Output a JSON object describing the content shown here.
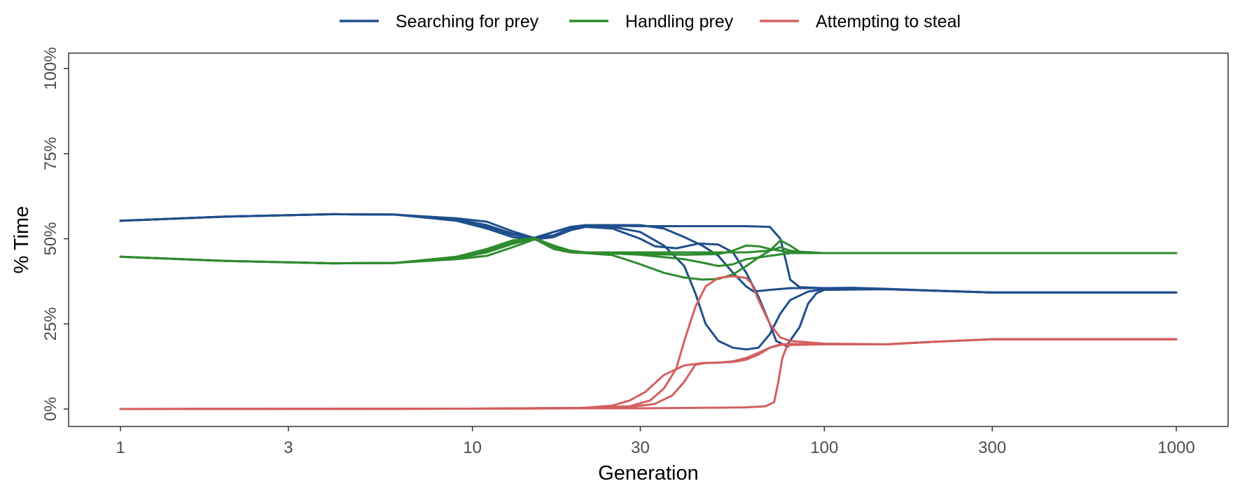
{
  "chart_data": {
    "type": "line",
    "title": "",
    "xlabel": "Generation",
    "ylabel": "% Time",
    "x_scale": "log",
    "xlim": [
      1,
      1000
    ],
    "ylim": [
      0,
      1
    ],
    "x_ticks": [
      1,
      3,
      10,
      30,
      100,
      300,
      1000
    ],
    "x_tick_labels": [
      "1",
      "3",
      "10",
      "30",
      "100",
      "300",
      "1000"
    ],
    "y_ticks": [
      0,
      0.25,
      0.5,
      0.75,
      1.0
    ],
    "y_tick_labels": [
      "0%",
      "25%",
      "50%",
      "75%",
      "100%"
    ],
    "grid": false,
    "legend_position": "top",
    "series": [
      {
        "name": "Searching for prey",
        "color": "#1f4e8c",
        "run": 1,
        "points": [
          [
            1,
            0.553
          ],
          [
            2,
            0.565
          ],
          [
            4,
            0.572
          ],
          [
            6,
            0.571
          ],
          [
            9,
            0.56
          ],
          [
            11,
            0.55
          ],
          [
            13,
            0.522
          ],
          [
            15,
            0.502
          ],
          [
            17,
            0.51
          ],
          [
            19,
            0.53
          ],
          [
            21,
            0.537
          ],
          [
            25,
            0.538
          ],
          [
            30,
            0.537
          ],
          [
            40,
            0.537
          ],
          [
            50,
            0.537
          ],
          [
            60,
            0.537
          ],
          [
            70,
            0.535
          ],
          [
            75,
            0.5
          ],
          [
            78,
            0.43
          ],
          [
            80,
            0.38
          ],
          [
            85,
            0.358
          ],
          [
            100,
            0.355
          ],
          [
            120,
            0.356
          ],
          [
            150,
            0.353
          ],
          [
            200,
            0.348
          ],
          [
            300,
            0.342
          ],
          [
            500,
            0.342
          ],
          [
            1000,
            0.342
          ]
        ]
      },
      {
        "name": "Searching for prey",
        "color": "#1f4e8c",
        "run": 2,
        "points": [
          [
            1,
            0.553
          ],
          [
            2,
            0.565
          ],
          [
            4,
            0.572
          ],
          [
            6,
            0.571
          ],
          [
            9,
            0.557
          ],
          [
            11,
            0.54
          ],
          [
            13,
            0.515
          ],
          [
            15,
            0.5
          ],
          [
            17,
            0.52
          ],
          [
            19,
            0.535
          ],
          [
            21,
            0.54
          ],
          [
            25,
            0.54
          ],
          [
            30,
            0.54
          ],
          [
            35,
            0.53
          ],
          [
            40,
            0.505
          ],
          [
            45,
            0.48
          ],
          [
            50,
            0.45
          ],
          [
            55,
            0.4
          ],
          [
            60,
            0.36
          ],
          [
            63,
            0.345
          ],
          [
            70,
            0.35
          ],
          [
            80,
            0.355
          ],
          [
            100,
            0.355
          ],
          [
            150,
            0.352
          ],
          [
            300,
            0.342
          ],
          [
            1000,
            0.342
          ]
        ]
      },
      {
        "name": "Searching for prey",
        "color": "#1f4e8c",
        "run": 3,
        "points": [
          [
            1,
            0.553
          ],
          [
            2,
            0.565
          ],
          [
            4,
            0.572
          ],
          [
            6,
            0.571
          ],
          [
            9,
            0.555
          ],
          [
            11,
            0.535
          ],
          [
            13,
            0.512
          ],
          [
            15,
            0.503
          ],
          [
            17,
            0.52
          ],
          [
            19,
            0.533
          ],
          [
            21,
            0.537
          ],
          [
            25,
            0.535
          ],
          [
            30,
            0.52
          ],
          [
            35,
            0.48
          ],
          [
            40,
            0.42
          ],
          [
            43,
            0.34
          ],
          [
            46,
            0.25
          ],
          [
            50,
            0.2
          ],
          [
            55,
            0.18
          ],
          [
            60,
            0.175
          ],
          [
            65,
            0.18
          ],
          [
            70,
            0.22
          ],
          [
            75,
            0.28
          ],
          [
            80,
            0.32
          ],
          [
            90,
            0.345
          ],
          [
            100,
            0.352
          ],
          [
            150,
            0.352
          ],
          [
            300,
            0.342
          ],
          [
            1000,
            0.342
          ]
        ]
      },
      {
        "name": "Searching for prey",
        "color": "#1f4e8c",
        "run": 4,
        "points": [
          [
            1,
            0.553
          ],
          [
            2,
            0.565
          ],
          [
            4,
            0.572
          ],
          [
            6,
            0.571
          ],
          [
            9,
            0.553
          ],
          [
            11,
            0.53
          ],
          [
            13,
            0.505
          ],
          [
            15,
            0.498
          ],
          [
            17,
            0.505
          ],
          [
            19,
            0.525
          ],
          [
            21,
            0.535
          ],
          [
            25,
            0.53
          ],
          [
            30,
            0.5
          ],
          [
            33,
            0.478
          ],
          [
            38,
            0.472
          ],
          [
            44,
            0.486
          ],
          [
            50,
            0.483
          ],
          [
            55,
            0.46
          ],
          [
            60,
            0.4
          ],
          [
            65,
            0.33
          ],
          [
            70,
            0.25
          ],
          [
            73,
            0.2
          ],
          [
            78,
            0.185
          ],
          [
            85,
            0.24
          ],
          [
            90,
            0.31
          ],
          [
            95,
            0.34
          ],
          [
            100,
            0.35
          ],
          [
            150,
            0.352
          ],
          [
            300,
            0.342
          ],
          [
            1000,
            0.342
          ]
        ]
      },
      {
        "name": "Handling prey",
        "color": "#2e8b2e",
        "run": 1,
        "points": [
          [
            1,
            0.447
          ],
          [
            2,
            0.435
          ],
          [
            4,
            0.428
          ],
          [
            6,
            0.429
          ],
          [
            9,
            0.44
          ],
          [
            11,
            0.45
          ],
          [
            13,
            0.475
          ],
          [
            15,
            0.498
          ],
          [
            17,
            0.48
          ],
          [
            19,
            0.465
          ],
          [
            21,
            0.46
          ],
          [
            30,
            0.46
          ],
          [
            40,
            0.46
          ],
          [
            50,
            0.46
          ],
          [
            60,
            0.46
          ],
          [
            70,
            0.465
          ],
          [
            75,
            0.495
          ],
          [
            80,
            0.48
          ],
          [
            85,
            0.462
          ],
          [
            100,
            0.458
          ],
          [
            200,
            0.458
          ],
          [
            1000,
            0.458
          ]
        ]
      },
      {
        "name": "Handling prey",
        "color": "#2e8b2e",
        "run": 2,
        "points": [
          [
            1,
            0.447
          ],
          [
            2,
            0.435
          ],
          [
            4,
            0.428
          ],
          [
            6,
            0.429
          ],
          [
            9,
            0.443
          ],
          [
            11,
            0.46
          ],
          [
            13,
            0.485
          ],
          [
            15,
            0.5
          ],
          [
            17,
            0.47
          ],
          [
            19,
            0.46
          ],
          [
            21,
            0.458
          ],
          [
            25,
            0.457
          ],
          [
            30,
            0.453
          ],
          [
            40,
            0.44
          ],
          [
            45,
            0.43
          ],
          [
            50,
            0.42
          ],
          [
            55,
            0.425
          ],
          [
            60,
            0.44
          ],
          [
            65,
            0.445
          ],
          [
            70,
            0.45
          ],
          [
            80,
            0.458
          ],
          [
            100,
            0.458
          ],
          [
            1000,
            0.458
          ]
        ]
      },
      {
        "name": "Handling prey",
        "color": "#2e8b2e",
        "run": 3,
        "points": [
          [
            1,
            0.447
          ],
          [
            2,
            0.435
          ],
          [
            4,
            0.428
          ],
          [
            6,
            0.429
          ],
          [
            9,
            0.445
          ],
          [
            11,
            0.465
          ],
          [
            13,
            0.49
          ],
          [
            15,
            0.5
          ],
          [
            17,
            0.475
          ],
          [
            19,
            0.462
          ],
          [
            21,
            0.458
          ],
          [
            25,
            0.457
          ],
          [
            30,
            0.455
          ],
          [
            40,
            0.453
          ],
          [
            50,
            0.455
          ],
          [
            55,
            0.465
          ],
          [
            60,
            0.48
          ],
          [
            65,
            0.478
          ],
          [
            70,
            0.47
          ],
          [
            80,
            0.46
          ],
          [
            100,
            0.458
          ],
          [
            1000,
            0.458
          ]
        ]
      },
      {
        "name": "Handling prey",
        "color": "#2e8b2e",
        "run": 4,
        "points": [
          [
            1,
            0.447
          ],
          [
            2,
            0.435
          ],
          [
            4,
            0.428
          ],
          [
            6,
            0.429
          ],
          [
            9,
            0.447
          ],
          [
            11,
            0.47
          ],
          [
            13,
            0.495
          ],
          [
            15,
            0.502
          ],
          [
            17,
            0.48
          ],
          [
            19,
            0.462
          ],
          [
            21,
            0.458
          ],
          [
            25,
            0.452
          ],
          [
            30,
            0.425
          ],
          [
            35,
            0.4
          ],
          [
            40,
            0.386
          ],
          [
            45,
            0.38
          ],
          [
            50,
            0.382
          ],
          [
            55,
            0.395
          ],
          [
            60,
            0.42
          ],
          [
            65,
            0.445
          ],
          [
            70,
            0.465
          ],
          [
            75,
            0.475
          ],
          [
            80,
            0.465
          ],
          [
            90,
            0.458
          ],
          [
            100,
            0.458
          ],
          [
            1000,
            0.458
          ]
        ]
      },
      {
        "name": "Attempting to steal",
        "color": "#d35f5f",
        "run": 1,
        "points": [
          [
            1,
            0.0
          ],
          [
            5,
            0.0
          ],
          [
            10,
            0.001
          ],
          [
            20,
            0.002
          ],
          [
            30,
            0.002
          ],
          [
            50,
            0.004
          ],
          [
            60,
            0.005
          ],
          [
            68,
            0.008
          ],
          [
            72,
            0.02
          ],
          [
            74,
            0.08
          ],
          [
            76,
            0.15
          ],
          [
            78,
            0.18
          ],
          [
            80,
            0.188
          ],
          [
            100,
            0.19
          ],
          [
            150,
            0.19
          ],
          [
            200,
            0.197
          ],
          [
            300,
            0.205
          ],
          [
            500,
            0.205
          ],
          [
            1000,
            0.205
          ]
        ]
      },
      {
        "name": "Attempting to steal",
        "color": "#d35f5f",
        "run": 2,
        "points": [
          [
            1,
            0.0
          ],
          [
            10,
            0.001
          ],
          [
            20,
            0.002
          ],
          [
            25,
            0.01
          ],
          [
            28,
            0.025
          ],
          [
            31,
            0.05
          ],
          [
            35,
            0.1
          ],
          [
            40,
            0.128
          ],
          [
            45,
            0.135
          ],
          [
            55,
            0.138
          ],
          [
            60,
            0.145
          ],
          [
            65,
            0.16
          ],
          [
            70,
            0.18
          ],
          [
            75,
            0.19
          ],
          [
            80,
            0.191
          ],
          [
            100,
            0.191
          ],
          [
            150,
            0.19
          ],
          [
            200,
            0.197
          ],
          [
            300,
            0.205
          ],
          [
            1000,
            0.205
          ]
        ]
      },
      {
        "name": "Attempting to steal",
        "color": "#d35f5f",
        "run": 3,
        "points": [
          [
            1,
            0.0
          ],
          [
            10,
            0.001
          ],
          [
            20,
            0.003
          ],
          [
            28,
            0.008
          ],
          [
            32,
            0.025
          ],
          [
            35,
            0.06
          ],
          [
            38,
            0.12
          ],
          [
            40,
            0.2
          ],
          [
            43,
            0.3
          ],
          [
            46,
            0.36
          ],
          [
            50,
            0.385
          ],
          [
            55,
            0.39
          ],
          [
            60,
            0.385
          ],
          [
            62,
            0.37
          ],
          [
            65,
            0.32
          ],
          [
            70,
            0.25
          ],
          [
            75,
            0.21
          ],
          [
            80,
            0.2
          ],
          [
            100,
            0.192
          ],
          [
            150,
            0.19
          ],
          [
            200,
            0.197
          ],
          [
            300,
            0.205
          ],
          [
            1000,
            0.205
          ]
        ]
      },
      {
        "name": "Attempting to steal",
        "color": "#d35f5f",
        "run": 4,
        "points": [
          [
            1,
            0.0
          ],
          [
            10,
            0.001
          ],
          [
            20,
            0.003
          ],
          [
            28,
            0.006
          ],
          [
            33,
            0.015
          ],
          [
            37,
            0.04
          ],
          [
            40,
            0.08
          ],
          [
            43,
            0.13
          ],
          [
            46,
            0.135
          ],
          [
            50,
            0.136
          ],
          [
            55,
            0.14
          ],
          [
            60,
            0.15
          ],
          [
            65,
            0.165
          ],
          [
            70,
            0.18
          ],
          [
            75,
            0.188
          ],
          [
            80,
            0.19
          ],
          [
            100,
            0.191
          ],
          [
            150,
            0.19
          ],
          [
            200,
            0.197
          ],
          [
            300,
            0.205
          ],
          [
            1000,
            0.205
          ]
        ]
      }
    ],
    "legend": [
      {
        "name": "Searching for prey",
        "color": "#1f4e8c"
      },
      {
        "name": "Handling prey",
        "color": "#2e8b2e"
      },
      {
        "name": "Attempting to steal",
        "color": "#d35f5f"
      }
    ]
  }
}
